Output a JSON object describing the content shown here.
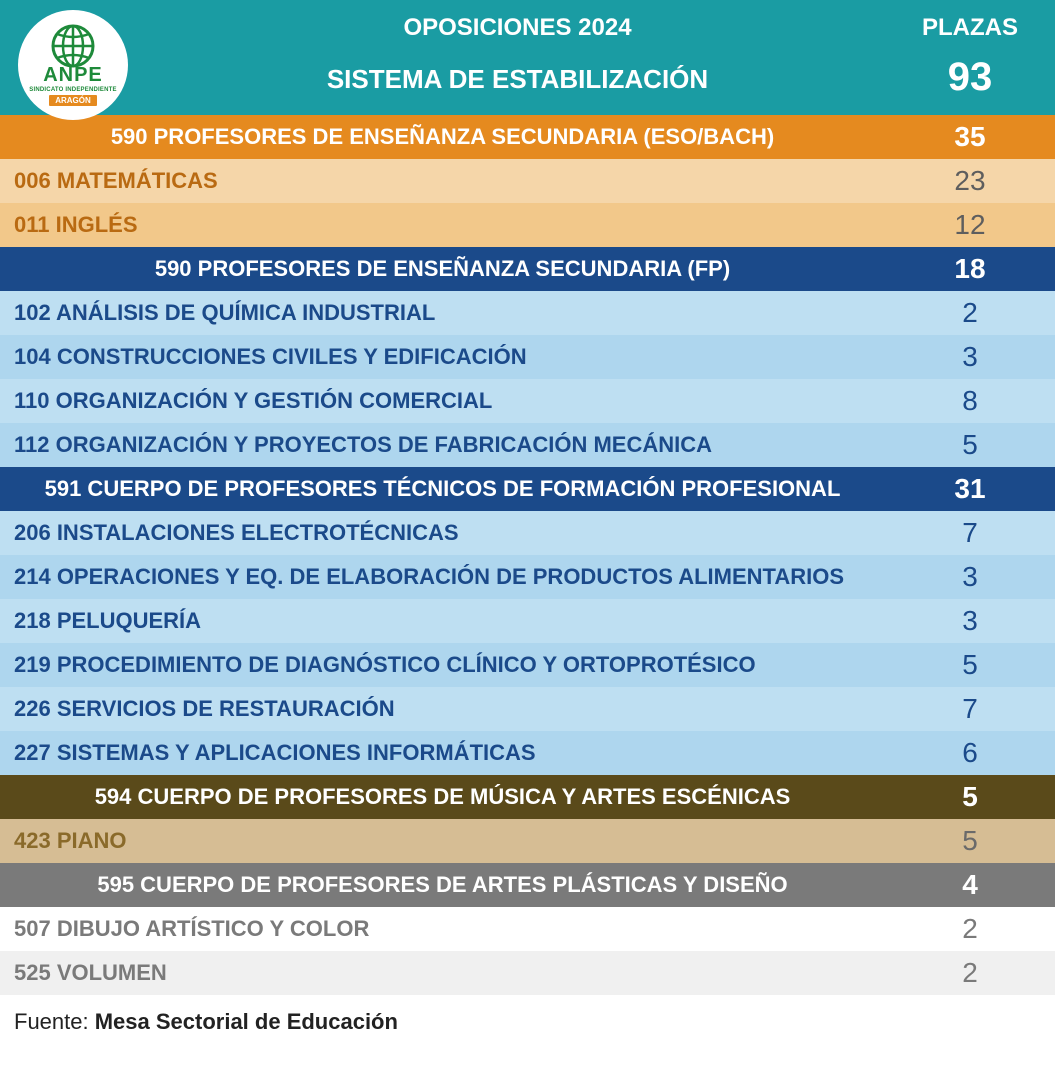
{
  "colors": {
    "teal": "#1a9ca3",
    "orange_header_bg": "#e58a1f",
    "orange_header_text": "#ffffff",
    "orange_row_bg_1": "#f5d6a9",
    "orange_row_bg_2": "#f2c88a",
    "orange_row_text": "#b96a12",
    "orange_value_text": "#5e5e5e",
    "navy_header_bg": "#1b4a8a",
    "blue_row_bg_1": "#bedff2",
    "blue_row_bg_2": "#aed6ee",
    "blue_row_text": "#1b4a8a",
    "blue_value_text": "#1b4a8a",
    "brown_header_bg": "#5a4a1a",
    "tan_row_bg": "#d6bd94",
    "tan_row_text": "#8a6a2a",
    "tan_value_text": "#6a6a6a",
    "gray_header_bg": "#7a7a7a",
    "gray_row_bg_1": "#ffffff",
    "gray_row_bg_2": "#f0f0f0",
    "gray_row_text": "#7a7a7a",
    "gray_value_text": "#7a7a7a"
  },
  "logo": {
    "brand": "ANPE",
    "subline": "SINDICATO INDEPENDIENTE",
    "region": "ARAGÓN"
  },
  "header": {
    "title": "OPOSICIONES 2024",
    "plazas_label": "PLAZAS",
    "subtitle": "SISTEMA DE ESTABILIZACIÓN",
    "total": "93"
  },
  "sections": [
    {
      "title": "590 PROFESORES DE ENSEÑANZA SECUNDARIA (ESO/BACH)",
      "total": "35",
      "header_bg": "orange_header_bg",
      "header_text": "orange_header_text",
      "row_text": "orange_row_text",
      "value_text": "orange_value_text",
      "row_bgs": [
        "orange_row_bg_1",
        "orange_row_bg_2"
      ],
      "items": [
        {
          "label": "006 MATEMÁTICAS",
          "value": "23"
        },
        {
          "label": "011 INGLÉS",
          "value": "12"
        }
      ]
    },
    {
      "title": "590 PROFESORES DE ENSEÑANZA SECUNDARIA (FP)",
      "total": "18",
      "header_bg": "navy_header_bg",
      "header_text": "orange_header_text",
      "row_text": "blue_row_text",
      "value_text": "blue_value_text",
      "row_bgs": [
        "blue_row_bg_1",
        "blue_row_bg_2"
      ],
      "items": [
        {
          "label": "102 ANÁLISIS DE QUÍMICA INDUSTRIAL",
          "value": "2"
        },
        {
          "label": "104 CONSTRUCCIONES CIVILES Y EDIFICACIÓN",
          "value": "3"
        },
        {
          "label": "110 ORGANIZACIÓN Y GESTIÓN COMERCIAL",
          "value": "8"
        },
        {
          "label": "112 ORGANIZACIÓN Y PROYECTOS DE FABRICACIÓN MECÁNICA",
          "value": "5"
        }
      ]
    },
    {
      "title": "591 CUERPO DE PROFESORES TÉCNICOS DE FORMACIÓN PROFESIONAL",
      "total": "31",
      "header_bg": "navy_header_bg",
      "header_text": "orange_header_text",
      "row_text": "blue_row_text",
      "value_text": "blue_value_text",
      "row_bgs": [
        "blue_row_bg_1",
        "blue_row_bg_2"
      ],
      "items": [
        {
          "label": "206 INSTALACIONES ELECTROTÉCNICAS",
          "value": "7"
        },
        {
          "label": "214 OPERACIONES Y EQ. DE ELABORACIÓN DE PRODUCTOS ALIMENTARIOS",
          "value": "3"
        },
        {
          "label": "218 PELUQUERÍA",
          "value": "3"
        },
        {
          "label": "219 PROCEDIMIENTO DE DIAGNÓSTICO CLÍNICO Y ORTOPROTÉSICO",
          "value": "5"
        },
        {
          "label": "226 SERVICIOS DE RESTAURACIÓN",
          "value": "7"
        },
        {
          "label": "227 SISTEMAS Y APLICACIONES INFORMÁTICAS",
          "value": "6"
        }
      ]
    },
    {
      "title": "594 CUERPO DE PROFESORES DE MÚSICA Y ARTES ESCÉNICAS",
      "total": "5",
      "header_bg": "brown_header_bg",
      "header_text": "orange_header_text",
      "row_text": "tan_row_text",
      "value_text": "tan_value_text",
      "row_bgs": [
        "tan_row_bg",
        "tan_row_bg"
      ],
      "items": [
        {
          "label": "423 PIANO",
          "value": "5"
        }
      ]
    },
    {
      "title": "595 CUERPO DE PROFESORES DE ARTES PLÁSTICAS Y DISEÑO",
      "total": "4",
      "header_bg": "gray_header_bg",
      "header_text": "orange_header_text",
      "row_text": "gray_row_text",
      "value_text": "gray_value_text",
      "row_bgs": [
        "gray_row_bg_1",
        "gray_row_bg_2"
      ],
      "items": [
        {
          "label": "507 DIBUJO ARTÍSTICO Y COLOR",
          "value": "2"
        },
        {
          "label": "525 VOLUMEN",
          "value": "2"
        }
      ]
    }
  ],
  "source": {
    "label": "Fuente: ",
    "value": "Mesa Sectorial de Educación"
  }
}
